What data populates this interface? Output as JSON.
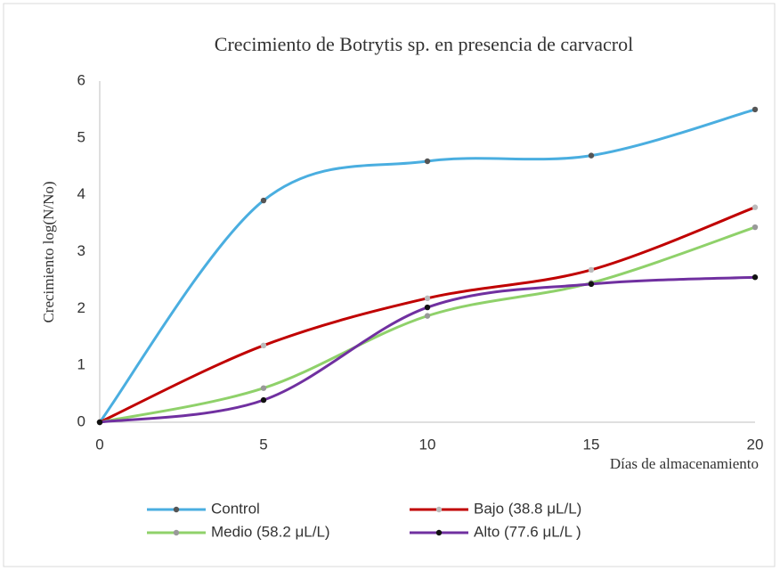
{
  "chart_data": {
    "type": "line",
    "title": "Crecimiento de Botrytis sp. en presencia de carvacrol",
    "y_label": "Crecimiento log(N/No)",
    "x_label": "Días de almacenamiento",
    "x": [
      0,
      5,
      10,
      15,
      20
    ],
    "xlim": [
      0,
      20
    ],
    "xticks": [
      0,
      5,
      10,
      15,
      20
    ],
    "ylim": [
      0,
      6
    ],
    "yticks": [
      0,
      1,
      2,
      3,
      4,
      5,
      6
    ],
    "grid": false,
    "smooth": true,
    "legend": "bottom",
    "series": [
      {
        "name": "Control",
        "color": "#4aaee0",
        "marker_color": "#555555",
        "values": [
          0,
          3.9,
          4.59,
          4.69,
          5.5
        ]
      },
      {
        "name": "Bajo (38.8 μL/L)",
        "color": "#c00000",
        "marker_color": "#bbbbbb",
        "values": [
          0,
          1.35,
          2.18,
          2.68,
          3.78
        ]
      },
      {
        "name": "Medio (58.2 μL/L)",
        "color": "#8fd16a",
        "marker_color": "#999999",
        "values": [
          0,
          0.6,
          1.87,
          2.45,
          3.43
        ]
      },
      {
        "name": "Alto (77.6 μL/L )",
        "color": "#7030a0",
        "marker_color": "#111111",
        "values": [
          0,
          0.39,
          2.02,
          2.43,
          2.55
        ]
      }
    ]
  }
}
